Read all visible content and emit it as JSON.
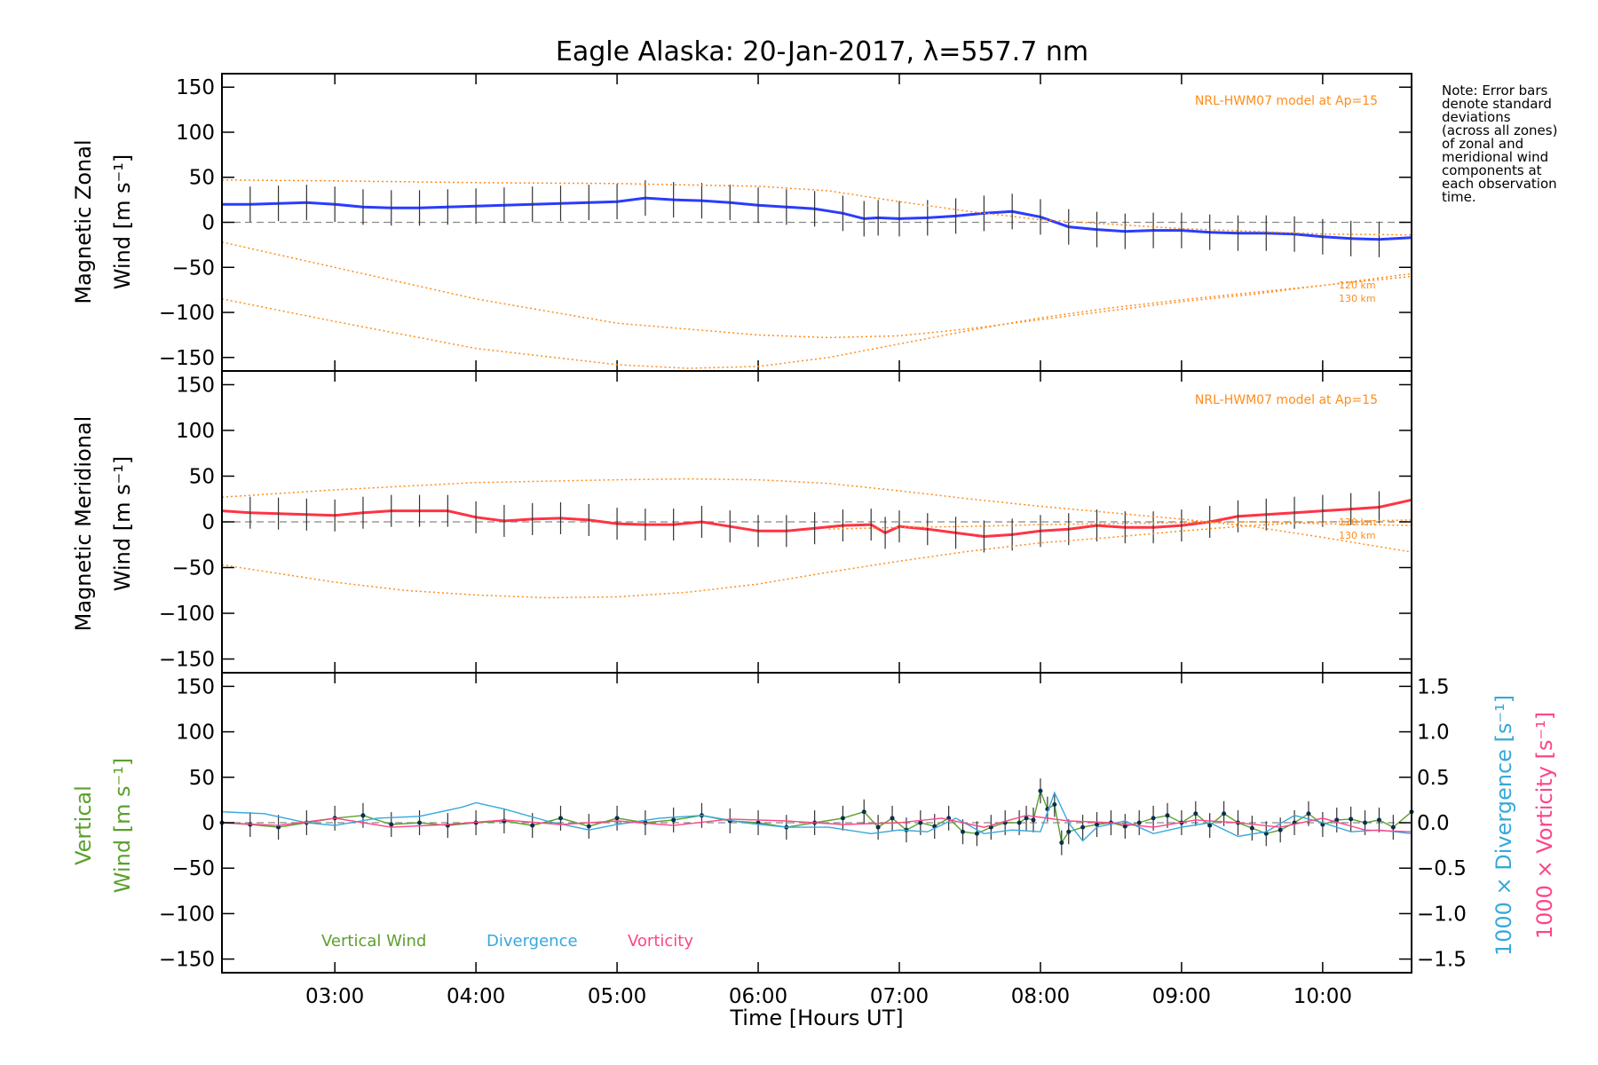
{
  "chart_data": [
    {
      "type": "line",
      "title": "Eagle Alaska: 20-Jan-2017, λ=557.7 nm",
      "ylabel_line1": "Magnetic Zonal",
      "ylabel_line2": "Wind [m s⁻¹]",
      "ylim": [
        -165,
        165
      ],
      "xlim": [
        2.2,
        10.63
      ],
      "yticks": [
        "150",
        "100",
        "50",
        "0",
        "−50",
        "−100",
        "−150"
      ],
      "ytick_values": [
        150,
        100,
        50,
        0,
        -50,
        -100,
        -150
      ],
      "model_label": "NRL-HWM07 model at Ap=15",
      "model_heights": [
        "120 km",
        "130 km"
      ],
      "series": [
        {
          "name": "",
          "color": "#2a3cff",
          "x": [
            2.2,
            2.4,
            2.6,
            2.8,
            3.0,
            3.2,
            3.4,
            3.6,
            3.8,
            4.0,
            4.2,
            4.4,
            4.6,
            4.8,
            5.0,
            5.2,
            5.4,
            5.6,
            5.8,
            6.0,
            6.2,
            6.4,
            6.6,
            6.75,
            6.85,
            7.0,
            7.2,
            7.4,
            7.6,
            7.8,
            8.0,
            8.2,
            8.4,
            8.6,
            8.8,
            9.0,
            9.2,
            9.4,
            9.6,
            9.8,
            10.0,
            10.2,
            10.4,
            10.63
          ],
          "y": [
            20,
            20,
            21,
            22,
            20,
            17,
            16,
            16,
            17,
            18,
            19,
            20,
            21,
            22,
            23,
            27,
            25,
            24,
            22,
            19,
            17,
            15,
            10,
            4,
            5,
            4,
            5,
            7,
            10,
            12,
            6,
            -5,
            -8,
            -10,
            -9,
            -9,
            -11,
            -12,
            -12,
            -13,
            -16,
            -18,
            -19,
            -17
          ]
        },
        {
          "name": "NRL-HWM07 120 km",
          "color": "#ff8c1a",
          "x": [
            2.2,
            3.0,
            4.0,
            5.0,
            6.0,
            6.5,
            7.0,
            7.5,
            8.0,
            8.5,
            9.0,
            9.5,
            10.0,
            10.63
          ],
          "y": [
            -22,
            -50,
            -85,
            -112,
            -125,
            -128,
            -126,
            -118,
            -108,
            -98,
            -88,
            -80,
            -70,
            -57
          ]
        },
        {
          "name": "NRL-HWM07 130 km",
          "color": "#ff8c1a",
          "x": [
            2.2,
            3.0,
            4.0,
            5.0,
            5.5,
            6.0,
            6.5,
            7.0,
            7.5,
            8.0,
            8.5,
            9.0,
            9.5,
            10.0,
            10.63
          ],
          "y": [
            -85,
            -110,
            -140,
            -158,
            -162,
            -160,
            -150,
            -135,
            -120,
            -106,
            -95,
            -86,
            -78,
            -70,
            -60
          ]
        },
        {
          "name": "NRL-HWM07 upper",
          "color": "#ff8c1a",
          "x": [
            2.2,
            3.0,
            4.0,
            5.0,
            6.0,
            6.5,
            7.0,
            7.5,
            8.0,
            9.0,
            10.0,
            10.63
          ],
          "y": [
            47,
            46,
            44,
            43,
            40,
            35,
            23,
            12,
            3,
            -7,
            -13,
            -14
          ]
        }
      ]
    },
    {
      "type": "line",
      "ylabel_line1": "Magnetic Meridional",
      "ylabel_line2": "Wind [m s⁻¹]",
      "ylim": [
        -165,
        165
      ],
      "xlim": [
        2.2,
        10.63
      ],
      "yticks": [
        "150",
        "100",
        "50",
        "0",
        "−50",
        "−100",
        "−150"
      ],
      "ytick_values": [
        150,
        100,
        50,
        0,
        -50,
        -100,
        -150
      ],
      "model_label": "NRL-HWM07 model at Ap=15",
      "model_heights": [
        "120 km",
        "130 km"
      ],
      "series": [
        {
          "name": "",
          "color": "#ff3344",
          "x": [
            2.2,
            2.4,
            2.6,
            2.8,
            3.0,
            3.2,
            3.4,
            3.6,
            3.8,
            4.0,
            4.2,
            4.4,
            4.6,
            4.8,
            5.0,
            5.2,
            5.4,
            5.6,
            5.8,
            6.0,
            6.2,
            6.4,
            6.6,
            6.8,
            6.9,
            7.0,
            7.2,
            7.4,
            7.6,
            7.8,
            8.0,
            8.2,
            8.4,
            8.6,
            8.8,
            9.0,
            9.2,
            9.4,
            9.6,
            9.8,
            10.0,
            10.2,
            10.4,
            10.63
          ],
          "y": [
            12,
            10,
            9,
            8,
            7,
            10,
            12,
            12,
            12,
            5,
            1,
            3,
            4,
            2,
            -2,
            -3,
            -3,
            0,
            -5,
            -10,
            -10,
            -7,
            -4,
            -3,
            -12,
            -5,
            -8,
            -12,
            -16,
            -14,
            -10,
            -8,
            -4,
            -6,
            -6,
            -4,
            0,
            6,
            8,
            10,
            12,
            14,
            16,
            24
          ]
        },
        {
          "name": "NRL-HWM07 upper",
          "color": "#ff8c1a",
          "x": [
            2.2,
            3.0,
            4.0,
            5.0,
            5.5,
            6.0,
            6.5,
            7.0,
            7.5,
            8.0,
            8.5,
            9.0,
            9.5,
            10.0,
            10.63
          ],
          "y": [
            27,
            35,
            43,
            46,
            47,
            46,
            42,
            34,
            25,
            17,
            10,
            3,
            -5,
            -17,
            -33
          ]
        },
        {
          "name": "NRL-HWM07 lower",
          "color": "#ff8c1a",
          "x": [
            2.2,
            3.0,
            3.5,
            4.0,
            4.5,
            5.0,
            5.5,
            6.0,
            6.5,
            7.0,
            7.5,
            8.0,
            8.5,
            9.0,
            9.5,
            10.0,
            10.63
          ],
          "y": [
            -47,
            -66,
            -75,
            -80,
            -83,
            -82,
            -77,
            -68,
            -55,
            -43,
            -32,
            -23,
            -17,
            -10,
            -4,
            0,
            2
          ]
        },
        {
          "name": "NRL-HWM07 120 km",
          "color": "#ff8c1a",
          "x": [
            6.5,
            7.0,
            7.5,
            8.0,
            8.5,
            9.0,
            9.5,
            10.0,
            10.63
          ],
          "y": [
            -8,
            -6,
            -5,
            -3,
            -2,
            -1,
            0,
            -2,
            -4
          ]
        }
      ]
    },
    {
      "type": "line",
      "ylabel_line1": "Vertical",
      "ylabel_line2": "Wind [m s⁻¹]",
      "ylim": [
        -165,
        165
      ],
      "xlim": [
        2.2,
        10.63
      ],
      "xlabel": "Time [Hours UT]",
      "xticks": [
        "03:00",
        "04:00",
        "05:00",
        "06:00",
        "07:00",
        "08:00",
        "09:00",
        "10:00"
      ],
      "xtick_values": [
        3,
        4,
        5,
        6,
        7,
        8,
        9,
        10
      ],
      "yticks": [
        "150",
        "100",
        "50",
        "0",
        "−50",
        "−100",
        "−150"
      ],
      "ytick_values": [
        150,
        100,
        50,
        0,
        -50,
        -100,
        -150
      ],
      "right_ylim": [
        -1.65,
        1.65
      ],
      "right_yticks": [
        "1.5",
        "1.0",
        "0.5",
        "0.0",
        "−0.5",
        "−1.0",
        "−1.5"
      ],
      "right_ytick_values": [
        1.5,
        1.0,
        0.5,
        0.0,
        -0.5,
        -1.0,
        -1.5
      ],
      "right_label_1": "1000 × Divergence [s⁻¹]",
      "right_label_2": "1000 × Vorticity [s⁻¹]",
      "series": [
        {
          "name": "Vertical Wind",
          "color": "#5aa02c",
          "x": [
            2.2,
            2.4,
            2.6,
            2.8,
            3.0,
            3.2,
            3.4,
            3.6,
            3.8,
            4.0,
            4.2,
            4.4,
            4.6,
            4.8,
            5.0,
            5.2,
            5.4,
            5.6,
            5.8,
            6.0,
            6.2,
            6.4,
            6.6,
            6.75,
            6.85,
            6.95,
            7.05,
            7.15,
            7.25,
            7.35,
            7.45,
            7.55,
            7.65,
            7.75,
            7.85,
            7.9,
            7.95,
            8.0,
            8.05,
            8.1,
            8.15,
            8.2,
            8.3,
            8.4,
            8.5,
            8.6,
            8.7,
            8.8,
            8.9,
            9.0,
            9.1,
            9.2,
            9.3,
            9.4,
            9.5,
            9.6,
            9.7,
            9.8,
            9.9,
            10.0,
            10.1,
            10.2,
            10.3,
            10.4,
            10.5,
            10.63
          ],
          "y": [
            0,
            -2,
            -5,
            0,
            5,
            8,
            -2,
            0,
            -3,
            0,
            2,
            -3,
            5,
            -4,
            5,
            0,
            3,
            8,
            2,
            0,
            -5,
            0,
            5,
            12,
            -5,
            5,
            -8,
            0,
            -4,
            5,
            -10,
            -12,
            -5,
            0,
            0,
            5,
            3,
            35,
            15,
            20,
            -22,
            -10,
            -5,
            -2,
            0,
            -4,
            0,
            5,
            8,
            0,
            10,
            -3,
            10,
            0,
            -6,
            -12,
            -8,
            0,
            10,
            -2,
            3,
            4,
            0,
            3,
            -5,
            12
          ]
        },
        {
          "name": "Divergence",
          "color": "#36a8dc",
          "x": [
            2.2,
            2.5,
            2.8,
            3.0,
            3.3,
            3.6,
            3.9,
            4.0,
            4.2,
            4.5,
            4.8,
            5.0,
            5.3,
            5.6,
            5.9,
            6.2,
            6.5,
            6.8,
            7.0,
            7.2,
            7.4,
            7.6,
            7.8,
            8.0,
            8.1,
            8.2,
            8.3,
            8.4,
            8.6,
            8.8,
            9.0,
            9.2,
            9.4,
            9.6,
            9.8,
            10.0,
            10.2,
            10.4,
            10.63
          ],
          "y": [
            0.12,
            0.1,
            0.0,
            -0.03,
            0.05,
            0.07,
            0.17,
            0.22,
            0.15,
            0.02,
            -0.08,
            -0.02,
            0.05,
            0.08,
            0.0,
            -0.05,
            -0.05,
            -0.12,
            -0.08,
            -0.1,
            0.05,
            -0.12,
            -0.08,
            -0.1,
            0.33,
            0.0,
            -0.2,
            -0.05,
            0.02,
            -0.12,
            -0.05,
            0.0,
            -0.15,
            -0.1,
            0.08,
            0.0,
            -0.1,
            -0.08,
            -0.12
          ]
        },
        {
          "name": "Vorticity",
          "color": "#ff4488",
          "x": [
            2.2,
            2.6,
            3.0,
            3.4,
            3.8,
            4.2,
            4.6,
            5.0,
            5.4,
            5.8,
            6.2,
            6.6,
            7.0,
            7.3,
            7.6,
            7.9,
            8.2,
            8.5,
            8.8,
            9.1,
            9.4,
            9.7,
            10.0,
            10.3,
            10.63
          ],
          "y": [
            0.0,
            -0.03,
            0.05,
            -0.05,
            -0.02,
            0.03,
            -0.02,
            0.02,
            -0.03,
            0.04,
            0.02,
            -0.02,
            0.0,
            0.05,
            -0.05,
            0.08,
            0.02,
            0.0,
            -0.05,
            0.03,
            0.0,
            -0.05,
            0.05,
            -0.08,
            -0.1
          ]
        }
      ]
    }
  ],
  "legend": {
    "vertical_wind": "Vertical Wind",
    "divergence": "Divergence",
    "vorticity": "Vorticity"
  },
  "note": "Note: Error bars\ndenote standard\ndeviations\n(across all zones)\nof zonal and\nmeridional wind\ncomponents at\neach observation\ntime."
}
